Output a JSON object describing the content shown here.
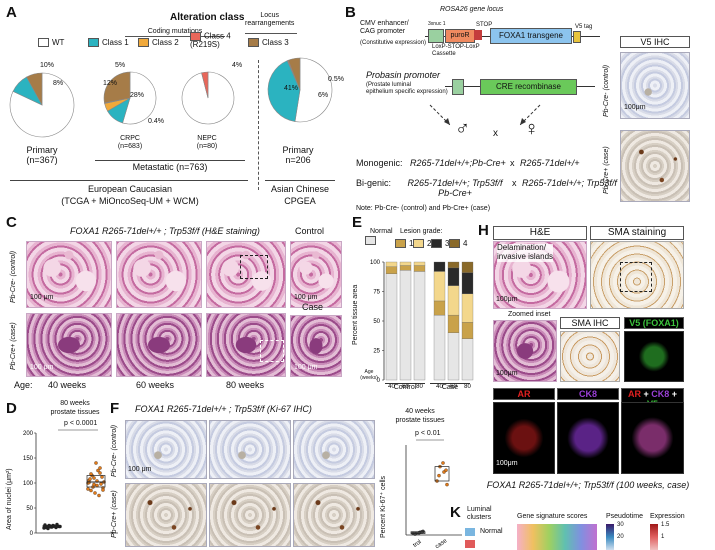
{
  "panels": {
    "A": "A",
    "B": "B",
    "C": "C",
    "D": "D",
    "E": "E",
    "F": "F",
    "H": "H",
    "K": "K"
  },
  "panelA": {
    "title": "Alteration class",
    "coding_mutations": "Coding mutations",
    "legend": [
      {
        "label": "WT",
        "color": "#ffffff"
      },
      {
        "label": "Class 1",
        "color": "#2bb3c0"
      },
      {
        "label": "Class 2",
        "color": "#f0a93b"
      },
      {
        "label": "Class 4\n(R219S)",
        "color": "#e8675a"
      },
      {
        "label": "Class 3",
        "color": "#a67c48"
      }
    ],
    "locus_label": "Locus\nrearrangements",
    "pies": [
      {
        "name": "Primary",
        "n": "(n=367)",
        "labels": [
          "10%",
          "8%"
        ],
        "slices": [
          {
            "v": 82,
            "c": "#ffffff"
          },
          {
            "v": 10,
            "c": "#2bb3c0"
          },
          {
            "v": 8,
            "c": "#a67c48"
          }
        ]
      },
      {
        "name": "CRPC",
        "n": "(n=683)",
        "labels": [
          "5%",
          "12%",
          "28%",
          "0.4%"
        ],
        "slices": [
          {
            "v": 54.6,
            "c": "#ffffff"
          },
          {
            "v": 12,
            "c": "#2bb3c0"
          },
          {
            "v": 5,
            "c": "#f0a93b"
          },
          {
            "v": 0.4,
            "c": "#e8675a"
          },
          {
            "v": 28,
            "c": "#a67c48"
          }
        ]
      },
      {
        "name": "NEPC",
        "n": "(n=80)",
        "labels": [
          "4%"
        ],
        "slices": [
          {
            "v": 96,
            "c": "#ffffff"
          },
          {
            "v": 4,
            "c": "#e8675a"
          }
        ]
      },
      {
        "name": "Primary",
        "n": "n=206",
        "labels": [
          "41%",
          "6%",
          "0.5%"
        ],
        "slices": [
          {
            "v": 52.5,
            "c": "#ffffff"
          },
          {
            "v": 41,
            "c": "#2bb3c0"
          },
          {
            "v": 0.5,
            "c": "#e8675a"
          },
          {
            "v": 6,
            "c": "#a67c48"
          }
        ]
      }
    ],
    "metastatic": "Metastatic (n=763)",
    "cohort1_line1": "European Caucasian",
    "cohort1_line2": "(TCGA + MiOncoSeq-UM + WCM)",
    "cohort2_line1": "Asian Chinese",
    "cohort2_line2": "CPGEA"
  },
  "panelB": {
    "locus": "ROSA26 gene locus",
    "promoter1": "CMV enhancer/\nCAG promoter",
    "promoter1_sub": "(Constitutive expression)",
    "intron": "3xnuc 1",
    "stop": "STOP",
    "puro": "puroR",
    "transgene": "FOXA1 transgene",
    "v5tag": "V5 tag",
    "cassette": "LoxP-STOP-LoxP\nCassette",
    "promoter2": "Probasin promoter",
    "promoter2_sub": "(Prostate luminal\nepithelium specific expression)",
    "cre": "CRE recombinase",
    "male": "♂",
    "female": "♀",
    "cross": "x",
    "mono_label": "Monogenic:",
    "mono_left": "R265-71del+/+;Pb-Cre+",
    "mono_right": "R265-71del+/+",
    "bi_label": "Bi-genic:",
    "bi_left": "R265-71del+/+; Trp53f/f\nPb-Cre+",
    "bi_right": "R265-71del+/+; Trp53f/f",
    "note": "Note: Pb-Cre- (control) and Pb-Cre+ (case)",
    "v5_title": "V5 IHC",
    "v5_ctrl": "Pb-Cre- (control)",
    "v5_case": "Pb-Cre+ (case)",
    "scale": "100μm"
  },
  "panelC": {
    "title": "FOXA1 R265-71del+/+ ; Trp53f/f (H&E staining)",
    "row1": "Pb-Cre- (control)",
    "row2": "Pb-Cre+ (case)",
    "ages_label": "Age:",
    "ages": [
      "40 weeks",
      "60 weeks",
      "80 weeks"
    ],
    "control": "Control",
    "case": "Case",
    "scale": "100 μm"
  },
  "panelD": {
    "title1": "80 weeks",
    "title2": "prostate tissues",
    "pval": "p < 0.0001",
    "ylabel": "Area of nuclei (μm²)",
    "yticks": [
      "0",
      "50",
      "100",
      "150",
      "200"
    ]
  },
  "panelE": {
    "normal": "Normal",
    "lesion": "Lesion grade:",
    "grades": [
      "1",
      "2",
      "3",
      "4"
    ],
    "ylabel": "Percent tissue area",
    "agelabel": "Age\n(weeks)",
    "groups": [
      "Control",
      "Case"
    ],
    "yticks": [
      "0",
      "25",
      "50",
      "75",
      "100"
    ]
  },
  "panelF": {
    "title": "FOXA1 R265-71del+/+ ; Trp53f/f (Ki-67 IHC)",
    "row1": "Pb-Cre- (control)",
    "row2": "Pb-Cre+ (case)",
    "scale": "100 μm",
    "side_title1": "40 weeks",
    "side_title2": "prostate tissues",
    "pval": "p < 0.01",
    "ylabel": "Percent Ki-67⁺ cells",
    "xlabels": [
      "trol",
      "case"
    ]
  },
  "panelH": {
    "he": "H&E",
    "sma": "SMA staining",
    "delam": "Delamination/\ninvasive islands",
    "zoom": "Zoomed inset",
    "sma_ihc": "SMA IHC",
    "v5": "V5 (FOXA1)",
    "ar": "AR",
    "ck8": "CK8",
    "merge_ar": "AR",
    "merge_plus1": " + ",
    "merge_ck8": "CK8",
    "merge_plus2": " + ",
    "merge_v5": "V5",
    "caption": "FOXA1 R265-71del+/+; Trp53f/f (100 weeks, case)",
    "scale": "100μm",
    "colors": {
      "ar": "#e02020",
      "ck8": "#9a3fd6",
      "v5": "#3cc43c"
    }
  },
  "panelK": {
    "luminal": "Luminal\nclusters",
    "normal": "Normal",
    "gene_sig": "Gene signature scores",
    "pseudotime": "Pseudotime",
    "expression": "Expression",
    "pt_ticks": [
      "30",
      "20"
    ],
    "ex_ticks": [
      "1.5",
      "1"
    ]
  },
  "chart_data": [
    {
      "type": "scatter",
      "title": "80 weeks prostate tissues",
      "ylabel": "Area of nuclei (μm²)",
      "ylim": [
        0,
        200
      ],
      "series": [
        {
          "values": [
            10,
            12,
            14,
            15,
            11,
            13,
            16,
            9,
            12,
            14,
            17,
            13,
            11,
            15,
            12
          ]
        },
        {
          "values": [
            100,
            85,
            110,
            95,
            120,
            90,
            105,
            115,
            80,
            125,
            98,
            102,
            108,
            92,
            140,
            75,
            112,
            88,
            118,
            97,
            104,
            130,
            86,
            101
          ]
        }
      ]
    },
    {
      "type": "bar",
      "ylabel": "Percent tissue area",
      "ylim": [
        0,
        100
      ],
      "categories": [
        "40",
        "60",
        "80",
        "40",
        "60",
        "80"
      ],
      "groups": [
        "Control",
        "Control",
        "Control",
        "Case",
        "Case",
        "Case"
      ],
      "series": [
        {
          "name": "Normal",
          "values": [
            90,
            93,
            92,
            55,
            40,
            35
          ]
        },
        {
          "name": "1",
          "values": [
            6,
            4,
            5,
            12,
            15,
            14
          ]
        },
        {
          "name": "2",
          "values": [
            4,
            3,
            3,
            25,
            25,
            24
          ]
        },
        {
          "name": "3",
          "values": [
            0,
            0,
            0,
            8,
            15,
            18
          ]
        },
        {
          "name": "4",
          "values": [
            0,
            0,
            0,
            0,
            5,
            9
          ]
        }
      ],
      "colors": [
        "#e6e6e6",
        "#c9a24a",
        "#f3d78c",
        "#2a2a2a",
        "#8a6a2a"
      ]
    },
    {
      "type": "scatter",
      "title": "40 weeks prostate tissues",
      "ylabel": "Percent Ki-67⁺ cells",
      "ylim": [
        0,
        50
      ],
      "series": [
        {
          "values": [
            1,
            1.5,
            0.8,
            2,
            1.2,
            0.5,
            1.8
          ]
        },
        {
          "values": [
            30,
            35,
            38,
            28,
            40,
            33,
            36
          ]
        }
      ]
    }
  ]
}
